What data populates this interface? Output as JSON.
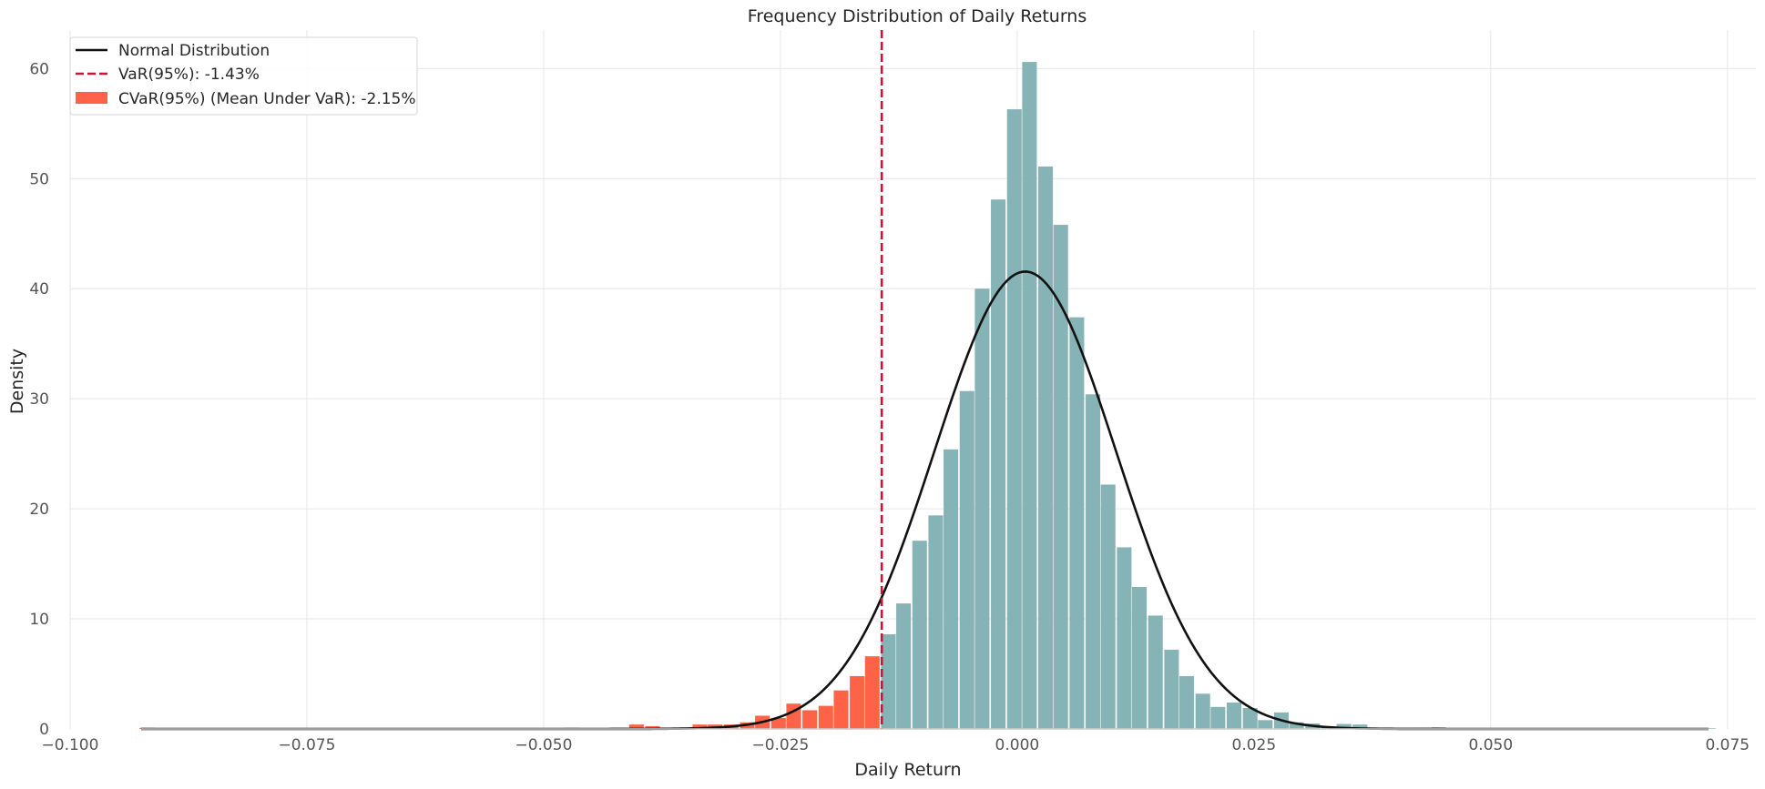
{
  "chart_data": {
    "type": "bar",
    "title": "Frequency Distribution of Daily Returns",
    "xlabel": "Daily Return",
    "ylabel": "Density",
    "xlim": [
      -0.1,
      0.078
    ],
    "ylim": [
      0,
      63.5
    ],
    "xticks": [
      -0.1,
      -0.075,
      -0.05,
      -0.025,
      0.0,
      0.025,
      0.05,
      0.075
    ],
    "xtick_labels": [
      "−0.100",
      "−0.075",
      "−0.050",
      "−0.025",
      "0.000",
      "0.025",
      "0.050",
      "0.075"
    ],
    "yticks": [
      0,
      10,
      20,
      30,
      40,
      50,
      60
    ],
    "ytick_labels": [
      "0",
      "10",
      "20",
      "30",
      "40",
      "50",
      "60"
    ],
    "grid": true,
    "legend_placement": "top-left",
    "colors": {
      "histogram": "#86b3b5",
      "cvar_bars": "#ff6347",
      "normal_line": "#111111",
      "var_line": "#c8143c",
      "grid": "#e6e6e6"
    },
    "histogram": {
      "bin_width": 0.00166,
      "bins": [
        {
          "x": -0.0919,
          "y": 0.1
        },
        {
          "x": -0.083,
          "y": 0.05
        },
        {
          "x": -0.07,
          "y": 0.05
        },
        {
          "x": -0.06,
          "y": 0.05
        },
        {
          "x": -0.05,
          "y": 0.05
        },
        {
          "x": -0.047,
          "y": 0.1
        },
        {
          "x": -0.042,
          "y": 0.1
        },
        {
          "x": -0.0402,
          "y": 0.4
        },
        {
          "x": -0.0385,
          "y": 0.25
        },
        {
          "x": -0.0368,
          "y": 0.1
        },
        {
          "x": -0.0352,
          "y": 0.1
        },
        {
          "x": -0.0335,
          "y": 0.4
        },
        {
          "x": -0.0319,
          "y": 0.4
        },
        {
          "x": -0.0302,
          "y": 0.4
        },
        {
          "x": -0.0285,
          "y": 0.6
        },
        {
          "x": -0.0269,
          "y": 1.2
        },
        {
          "x": -0.0252,
          "y": 1.0
        },
        {
          "x": -0.0236,
          "y": 2.3
        },
        {
          "x": -0.0219,
          "y": 1.7
        },
        {
          "x": -0.0202,
          "y": 2.1
        },
        {
          "x": -0.0186,
          "y": 3.5
        },
        {
          "x": -0.0169,
          "y": 4.8
        },
        {
          "x": -0.0153,
          "y": 6.6
        },
        {
          "x": -0.0136,
          "y": 8.6
        },
        {
          "x": -0.012,
          "y": 11.4
        },
        {
          "x": -0.0103,
          "y": 17.1
        },
        {
          "x": -0.0086,
          "y": 19.4
        },
        {
          "x": -0.007,
          "y": 25.4
        },
        {
          "x": -0.0053,
          "y": 30.7
        },
        {
          "x": -0.0037,
          "y": 40.0
        },
        {
          "x": -0.002,
          "y": 48.1
        },
        {
          "x": -0.0003,
          "y": 56.3
        },
        {
          "x": 0.0013,
          "y": 60.6
        },
        {
          "x": 0.003,
          "y": 51.1
        },
        {
          "x": 0.0046,
          "y": 45.8
        },
        {
          "x": 0.0063,
          "y": 37.4
        },
        {
          "x": 0.008,
          "y": 30.4
        },
        {
          "x": 0.0096,
          "y": 22.2
        },
        {
          "x": 0.0113,
          "y": 16.5
        },
        {
          "x": 0.0129,
          "y": 12.9
        },
        {
          "x": 0.0146,
          "y": 10.3
        },
        {
          "x": 0.0163,
          "y": 7.2
        },
        {
          "x": 0.0179,
          "y": 4.8
        },
        {
          "x": 0.0196,
          "y": 3.2
        },
        {
          "x": 0.0212,
          "y": 2.0
        },
        {
          "x": 0.0229,
          "y": 2.4
        },
        {
          "x": 0.0246,
          "y": 1.9
        },
        {
          "x": 0.0262,
          "y": 0.8
        },
        {
          "x": 0.0279,
          "y": 1.5
        },
        {
          "x": 0.0295,
          "y": 0.6
        },
        {
          "x": 0.0312,
          "y": 0.5
        },
        {
          "x": 0.0329,
          "y": 0.2
        },
        {
          "x": 0.0345,
          "y": 0.45
        },
        {
          "x": 0.0362,
          "y": 0.4
        },
        {
          "x": 0.0378,
          "y": 0.1
        },
        {
          "x": 0.0395,
          "y": 0.1
        },
        {
          "x": 0.0428,
          "y": 0.1
        },
        {
          "x": 0.0445,
          "y": 0.15
        },
        {
          "x": 0.052,
          "y": 0.05
        },
        {
          "x": 0.06,
          "y": 0.05
        },
        {
          "x": 0.07,
          "y": 0.05
        },
        {
          "x": 0.073,
          "y": 0.05
        }
      ]
    },
    "series": [
      {
        "name": "Normal Distribution",
        "type": "line",
        "mean": 0.00085,
        "std": 0.0096,
        "x_range": [
          -0.0925,
          0.073
        ]
      },
      {
        "name": "VaR(95%): -1.43%",
        "type": "vline",
        "x": -0.0143
      },
      {
        "name": "CVaR(95%) (Mean Under VaR): -2.15%",
        "type": "bar_highlight",
        "threshold": -0.0143
      }
    ]
  }
}
